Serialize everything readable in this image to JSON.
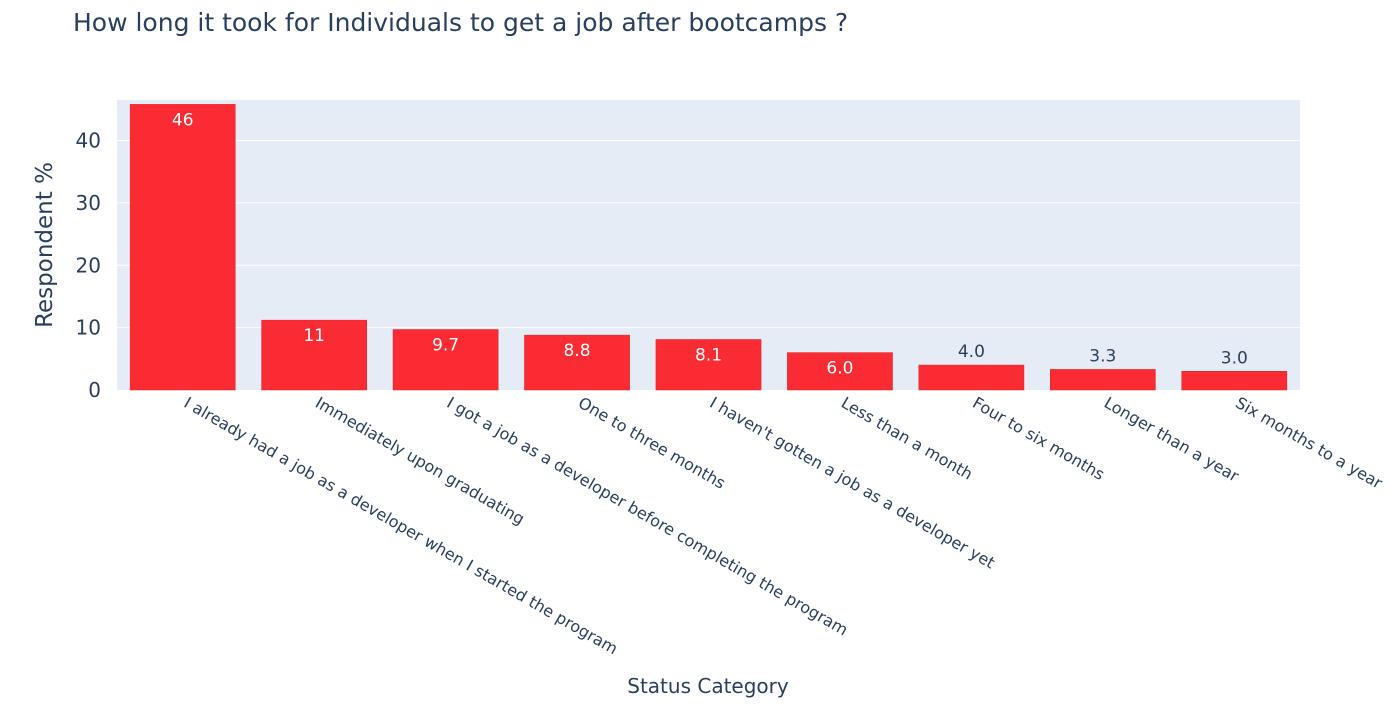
{
  "chart_data": {
    "type": "bar",
    "title": "How long it took for Individuals to get a job after bootcamps ?",
    "xlabel": "Status Category",
    "ylabel": "Respondent %",
    "ylim": [
      0,
      46.5
    ],
    "yticks": [
      0,
      10,
      20,
      30,
      40
    ],
    "grid": true,
    "bar_color": "#fa2b32",
    "plot_bg": "#e5ecf6",
    "categories": [
      "I already had a job as a developer when I started the program",
      "Immediately upon graduating",
      "I got a job as a developer before completing the program",
      "One to three months",
      "I haven't gotten a job as a developer yet",
      "Less than a month",
      "Four to six months",
      "Longer than a year",
      "Six months to a year"
    ],
    "values": [
      45.8,
      11.2,
      9.7,
      8.8,
      8.1,
      6.0,
      4.0,
      3.3,
      3.0
    ],
    "value_labels": [
      "46",
      "11",
      "9.7",
      "8.8",
      "8.1",
      "6.0",
      "4.0",
      "3.3",
      "3.0"
    ]
  }
}
